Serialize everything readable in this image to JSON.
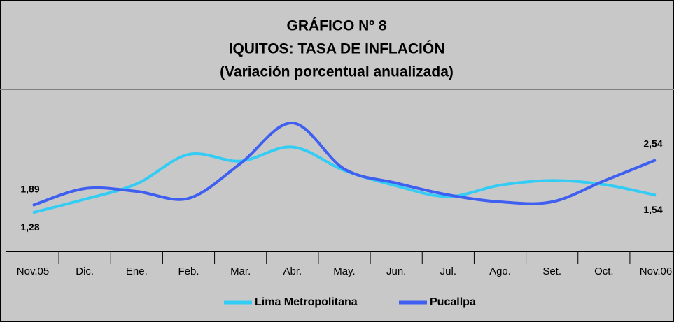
{
  "chart_data": {
    "type": "line",
    "title": [
      "GRÁFICO Nº 8",
      "IQUITOS: TASA DE INFLACIÓN",
      "(Variación porcentual anualizada)"
    ],
    "categories": [
      "Nov.05",
      "Dic.",
      "Ene.",
      "Feb.",
      "Mar.",
      "Abr.",
      "May.",
      "Jun.",
      "Jul.",
      "Ago.",
      "Set.",
      "Oct.",
      "Nov.06"
    ],
    "series": [
      {
        "name": "Lima Metropolitana",
        "color": "#33ccf5",
        "values": [
          1.28,
          1.48,
          1.71,
          2.15,
          2.05,
          2.26,
          1.91,
          1.68,
          1.52,
          1.69,
          1.76,
          1.7,
          1.54
        ],
        "value_labels": [
          "1,28",
          null,
          null,
          null,
          null,
          null,
          null,
          null,
          null,
          null,
          null,
          null,
          "1,54"
        ]
      },
      {
        "name": "Pucallpa",
        "color": "#3f5ff0",
        "axis": "y2",
        "values": [
          1.89,
          2.13,
          2.09,
          1.99,
          2.49,
          3.07,
          2.41,
          2.21,
          2.04,
          1.94,
          1.94,
          2.24,
          2.54
        ],
        "value_labels": [
          "1,89",
          null,
          null,
          null,
          null,
          null,
          null,
          null,
          null,
          null,
          null,
          null,
          "2,54"
        ]
      }
    ],
    "ylim": [
      0.7,
      3.1
    ],
    "y2lim": [
      1.23,
      3.53
    ],
    "legend": "bottom"
  }
}
